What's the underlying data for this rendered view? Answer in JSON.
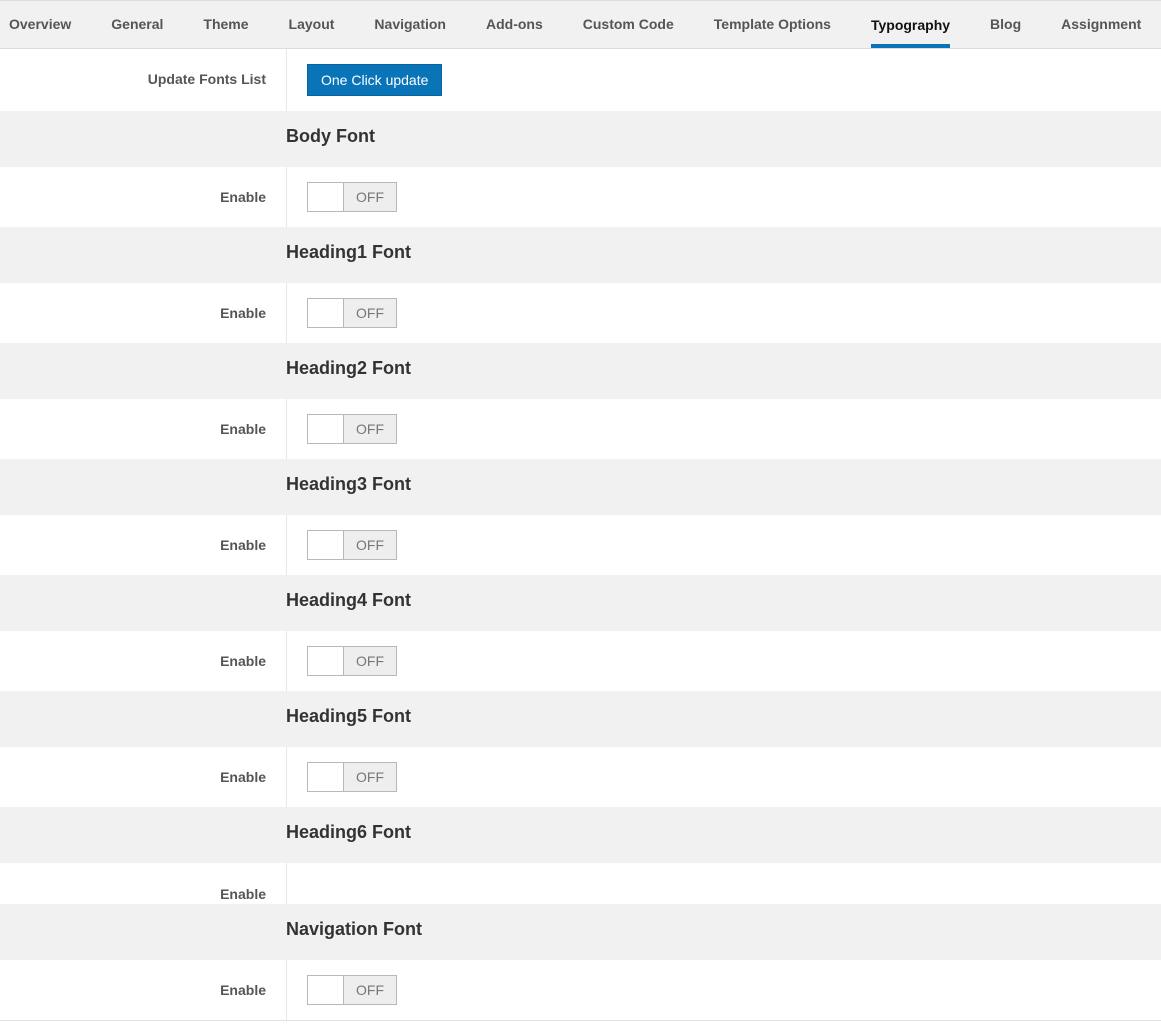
{
  "tabs": [
    {
      "label": "Overview",
      "active": false
    },
    {
      "label": "General",
      "active": false
    },
    {
      "label": "Theme",
      "active": false
    },
    {
      "label": "Layout",
      "active": false
    },
    {
      "label": "Navigation",
      "active": false
    },
    {
      "label": "Add-ons",
      "active": false
    },
    {
      "label": "Custom Code",
      "active": false
    },
    {
      "label": "Template Options",
      "active": false
    },
    {
      "label": "Typography",
      "active": true
    },
    {
      "label": "Blog",
      "active": false
    },
    {
      "label": "Assignment",
      "active": false
    }
  ],
  "update_row": {
    "label": "Update Fonts List",
    "button": "One Click update"
  },
  "sections": [
    {
      "title": "Body Font",
      "enable_label": "Enable",
      "toggle": "OFF"
    },
    {
      "title": "Heading1 Font",
      "enable_label": "Enable",
      "toggle": "OFF"
    },
    {
      "title": "Heading2 Font",
      "enable_label": "Enable",
      "toggle": "OFF"
    },
    {
      "title": "Heading3 Font",
      "enable_label": "Enable",
      "toggle": "OFF"
    },
    {
      "title": "Heading4 Font",
      "enable_label": "Enable",
      "toggle": "OFF"
    },
    {
      "title": "Heading5 Font",
      "enable_label": "Enable",
      "toggle": "OFF"
    },
    {
      "title": "Heading6 Font",
      "enable_label": "Enable"
    },
    {
      "title": "Navigation Font",
      "enable_label": "Enable",
      "toggle": "OFF"
    }
  ]
}
